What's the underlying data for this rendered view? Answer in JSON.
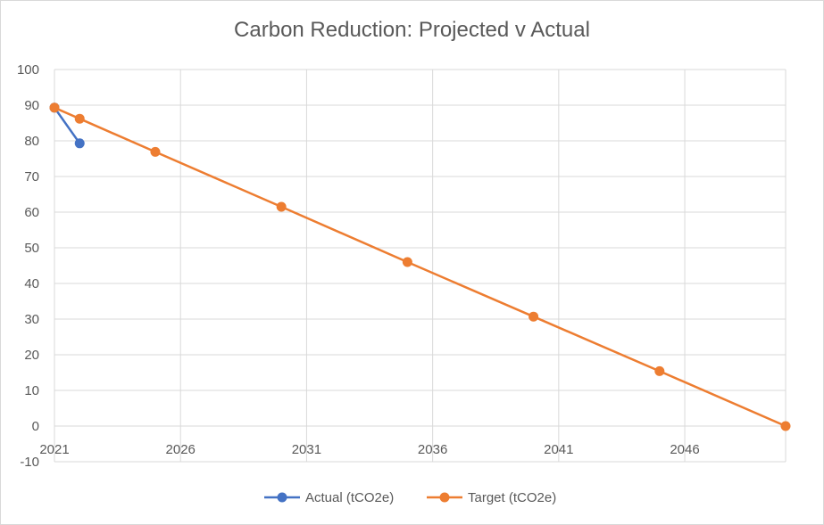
{
  "chart_data": {
    "type": "line",
    "title": "Carbon Reduction: Projected v Actual",
    "xlabel": "",
    "ylabel": "",
    "xlim": [
      2021,
      2050
    ],
    "ylim": [
      -10,
      100
    ],
    "x_ticks": [
      2021,
      2026,
      2031,
      2036,
      2041,
      2046
    ],
    "y_ticks": [
      -10,
      0,
      10,
      20,
      30,
      40,
      50,
      60,
      70,
      80,
      90,
      100
    ],
    "grid": true,
    "legend_position": "bottom",
    "series": [
      {
        "name": "Actual (tCO2e)",
        "color": "#4472c4",
        "x": [
          2021,
          2022
        ],
        "y": [
          89.3,
          79.3
        ]
      },
      {
        "name": "Target (tCO2e)",
        "color": "#ed7d31",
        "x": [
          2021,
          2022,
          2025,
          2030,
          2035,
          2040,
          2045,
          2050
        ],
        "y": [
          89.3,
          86.2,
          76.9,
          61.5,
          46.0,
          30.7,
          15.4,
          0
        ]
      }
    ]
  }
}
